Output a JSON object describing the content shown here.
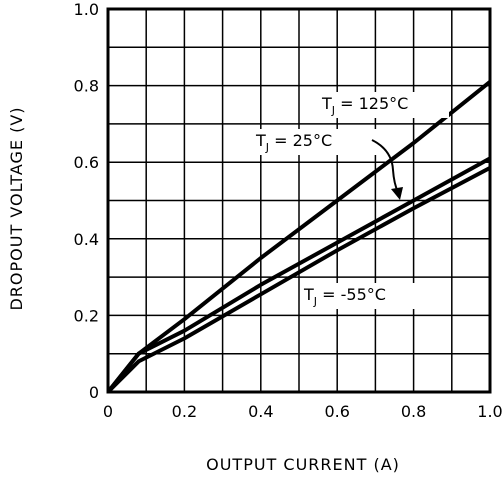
{
  "chart_data": {
    "type": "line",
    "title": "",
    "xlabel": "OUTPUT CURRENT (A)",
    "ylabel": "DROPOUT VOLTAGE (V)",
    "xlim": [
      0,
      1.0
    ],
    "ylim": [
      0,
      1.0
    ],
    "x_ticks": [
      "0",
      "0.2",
      "0.4",
      "0.6",
      "0.8",
      "1.0"
    ],
    "y_ticks": [
      "0",
      "0.2",
      "0.4",
      "0.6",
      "0.8",
      "1.0"
    ],
    "grid": true,
    "series": [
      {
        "name": "T_J = 125°C",
        "x": [
          0,
          0.08,
          0.2,
          0.4,
          0.6,
          0.8,
          1.0
        ],
        "y": [
          0,
          0.1,
          0.19,
          0.35,
          0.5,
          0.65,
          0.81
        ]
      },
      {
        "name": "T_J = 25°C",
        "x": [
          0,
          0.08,
          0.2,
          0.4,
          0.6,
          0.8,
          1.0
        ],
        "y": [
          0,
          0.1,
          0.16,
          0.28,
          0.39,
          0.5,
          0.61
        ]
      },
      {
        "name": "T_J = -55°C",
        "x": [
          0,
          0.08,
          0.2,
          0.4,
          0.6,
          0.8,
          1.0
        ],
        "y": [
          0,
          0.08,
          0.14,
          0.255,
          0.37,
          0.48,
          0.585
        ]
      }
    ],
    "annotations": [
      {
        "series": 0,
        "main": "T",
        "sub": "J",
        "rest": " = 125°C"
      },
      {
        "series": 1,
        "main": "T",
        "sub": "J",
        "rest": " = 25°C"
      },
      {
        "series": 2,
        "main": "T",
        "sub": "J",
        "rest": " = -55°C"
      }
    ]
  }
}
